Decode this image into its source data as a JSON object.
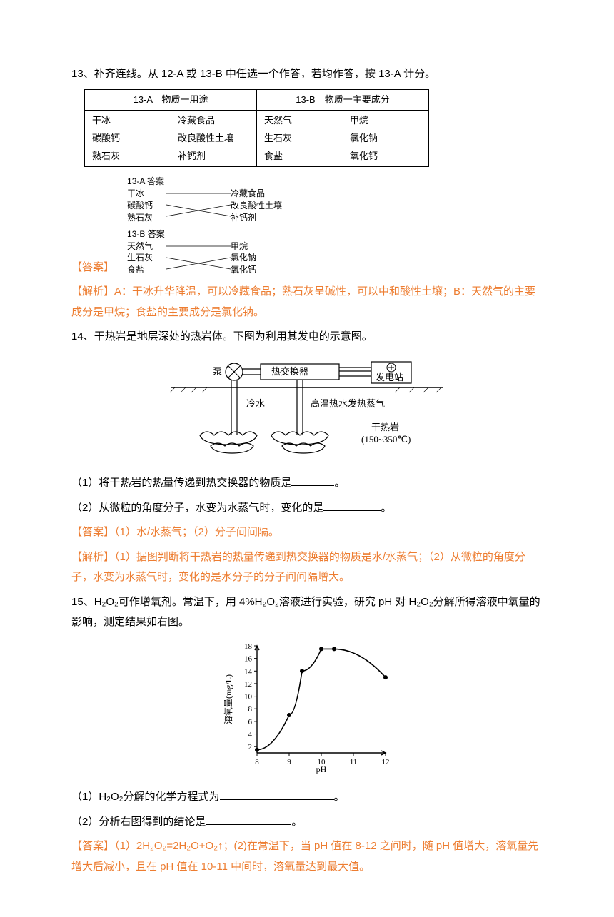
{
  "q13": {
    "number": "13、",
    "prompt": "补齐连线。从 12-A 或 13-B 中任选一个作答，若均作答，按 13-A 计分。",
    "table": {
      "header_a": "13-A　物质一用途",
      "header_b": "13-B　物质一主要成分",
      "col_a_left": [
        "干冰",
        "碳酸钙",
        "熟石灰"
      ],
      "col_a_right": [
        "冷藏食品",
        "改良酸性土壤",
        "补钙剂"
      ],
      "col_b_left": [
        "天然气",
        "生石灰",
        "食盐"
      ],
      "col_b_right": [
        "甲烷",
        "氯化钠",
        "氧化钙"
      ]
    },
    "answer_fig": {
      "section_a": "13-A 答案",
      "section_b": "13-B 答案",
      "a_left": [
        "干冰",
        "碳酸钙",
        "熟石灰"
      ],
      "a_right": [
        "冷藏食品",
        "改良酸性土壤",
        "补钙剂"
      ],
      "b_left": [
        "天然气",
        "生石灰",
        "食盐"
      ],
      "b_right": [
        "甲烷",
        "氯化钠",
        "氧化钙"
      ]
    },
    "answer_label": "【答案】",
    "explain_label": "【解析】",
    "explain": "A：干冰升华降温，可以冷藏食品；熟石灰呈碱性，可以中和酸性土壤；B：天然气的主要成分是甲烷；食盐的主要成分是氯化钠。"
  },
  "q14": {
    "number": "14、",
    "intro": "干热岩是地层深处的热岩体。下图为利用其发电的示意图。",
    "diagram": {
      "label_pump": "泵",
      "label_exchanger": "热交换器",
      "label_station": "发电站",
      "label_cold": "冷水",
      "label_hot": "高温热水发热蒸气",
      "label_rock": "干热岩",
      "label_temp": "(150~350℃)",
      "line_color": "#000000",
      "hatch_color": "#888888"
    },
    "part1": "（1）将干热岩的热量传递到热交换器的物质是",
    "part1_end": "。",
    "part2": "（2）从微粒的角度分子，水变为水蒸气时，变化的是",
    "part2_end": "。",
    "answer_label": "【答案】",
    "answer": "（1）水/水蒸气；（2）分子间间隔。",
    "explain_label": "【解析】",
    "explain": "（1）据图判断将干热岩的热量传递到热交换器的物质是水/水蒸气；（2）从微粒的角度分子，水变为水蒸气时，变化的是水分子的分子间间隔增大。"
  },
  "q15": {
    "number": "15、",
    "intro": "H₂O₂可作增氧剂。常温下，用 4%H₂O₂溶液进行实验，研究 pH 对 H₂O₂分解所得溶液中氧量的影响，测定结果如右图。",
    "chart": {
      "xlabel": "pH",
      "ylabel": "溶氧量(mg/L)",
      "xlim": [
        8,
        12
      ],
      "ylim": [
        1,
        18
      ],
      "xticks": [
        8,
        9,
        10,
        11,
        12
      ],
      "yticks": [
        2,
        4,
        6,
        8,
        10,
        12,
        14,
        16,
        18
      ],
      "points_x": [
        8,
        9,
        9.4,
        10,
        10.4,
        12
      ],
      "points_y": [
        1.5,
        7,
        14,
        17.5,
        17.5,
        13
      ],
      "line_color": "#000000",
      "axis_color": "#000000",
      "marker_size": 3
    },
    "part1": "（1）H₂O₂分解的化学方程式为",
    "part1_end": "。",
    "part2": "（2）分析右图得到的结论是",
    "part2_end": "。",
    "answer_label": "【答案】",
    "answer": "（1）2H₂O₂=2H₂O+O₂↑；(2)在常温下，当 pH 值在 8-12 之间时，随 pH 值增大，溶氧量先增大后减小，且在 pH 值在 10-11 中间时，溶氧量达到最大值。"
  },
  "colors": {
    "answer": "#ed7d31",
    "text": "#000000",
    "background": "#ffffff"
  }
}
